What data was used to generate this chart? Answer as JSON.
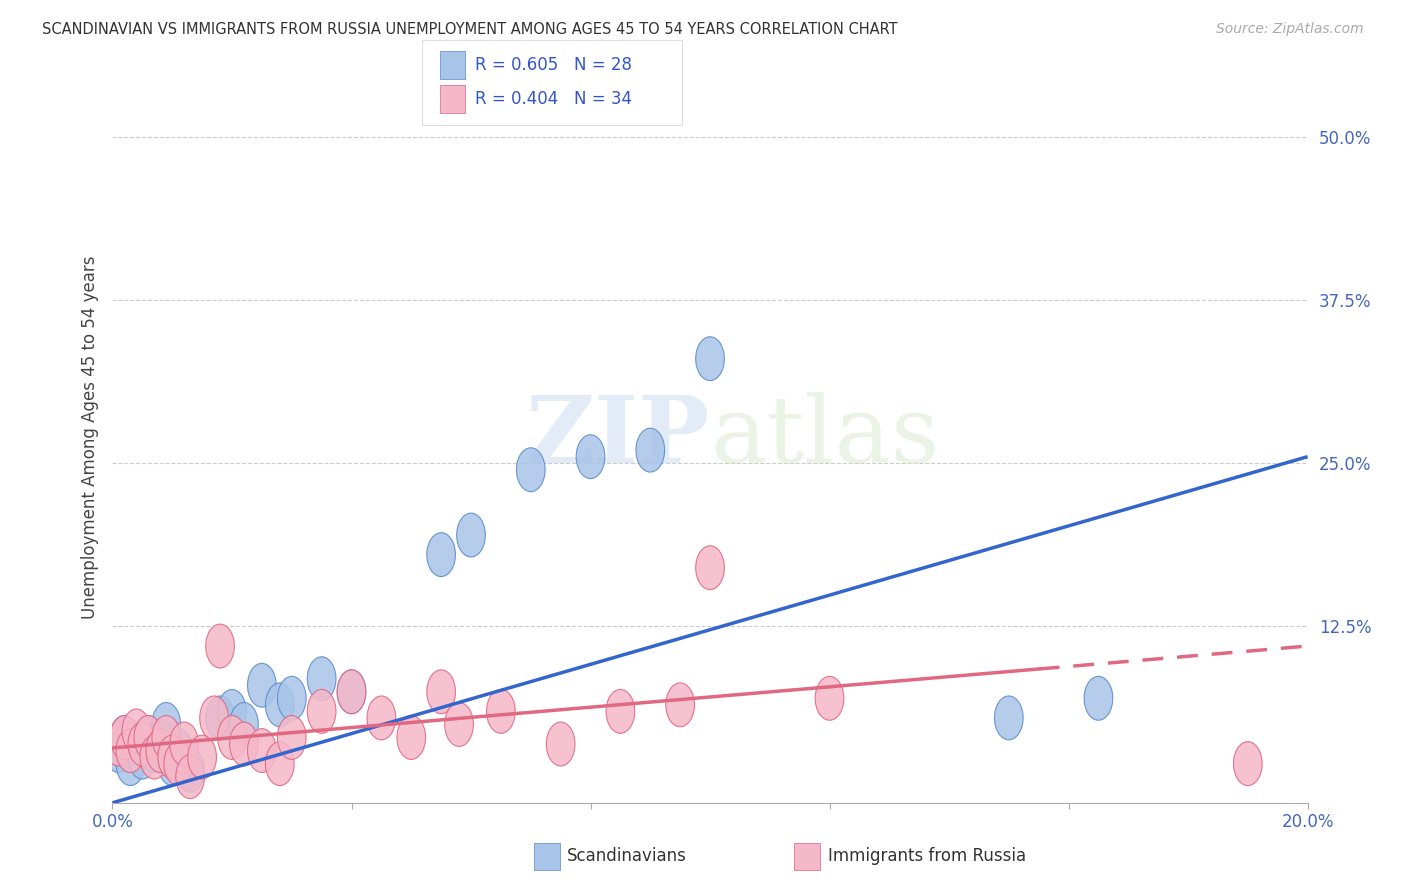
{
  "title": "SCANDINAVIAN VS IMMIGRANTS FROM RUSSIA UNEMPLOYMENT AMONG AGES 45 TO 54 YEARS CORRELATION CHART",
  "source": "Source: ZipAtlas.com",
  "ylabel": "Unemployment Among Ages 45 to 54 years",
  "watermark_zip": "ZIP",
  "watermark_atlas": "atlas",
  "xlim": [
    0.0,
    0.2
  ],
  "ylim": [
    -0.01,
    0.55
  ],
  "yticks": [
    0.0,
    0.125,
    0.25,
    0.375,
    0.5
  ],
  "ytick_labels": [
    "",
    "12.5%",
    "25.0%",
    "37.5%",
    "50.0%"
  ],
  "xticks": [
    0.0,
    0.04,
    0.08,
    0.12,
    0.16,
    0.2
  ],
  "xtick_labels": [
    "0.0%",
    "",
    "",
    "",
    "",
    "20.0%"
  ],
  "scand_color": "#a8c4e8",
  "russia_color": "#f5b8c8",
  "scand_edge_color": "#5588cc",
  "russia_edge_color": "#e06080",
  "scand_line_color": "#3366cc",
  "russia_line_color": "#e06880",
  "scand_x": [
    0.001,
    0.002,
    0.003,
    0.004,
    0.005,
    0.006,
    0.007,
    0.008,
    0.009,
    0.01,
    0.011,
    0.013,
    0.018,
    0.02,
    0.022,
    0.025,
    0.028,
    0.03,
    0.035,
    0.04,
    0.055,
    0.06,
    0.07,
    0.08,
    0.09,
    0.1,
    0.15,
    0.165
  ],
  "scand_y": [
    0.03,
    0.04,
    0.02,
    0.035,
    0.025,
    0.04,
    0.03,
    0.035,
    0.05,
    0.02,
    0.03,
    0.015,
    0.055,
    0.06,
    0.05,
    0.08,
    0.065,
    0.07,
    0.085,
    0.075,
    0.18,
    0.195,
    0.245,
    0.255,
    0.26,
    0.33,
    0.055,
    0.07
  ],
  "russia_x": [
    0.001,
    0.002,
    0.003,
    0.004,
    0.005,
    0.006,
    0.007,
    0.008,
    0.009,
    0.01,
    0.011,
    0.012,
    0.013,
    0.015,
    0.017,
    0.018,
    0.02,
    0.022,
    0.025,
    0.028,
    0.03,
    0.035,
    0.04,
    0.045,
    0.05,
    0.055,
    0.058,
    0.065,
    0.075,
    0.085,
    0.095,
    0.1,
    0.12,
    0.19
  ],
  "russia_y": [
    0.035,
    0.04,
    0.03,
    0.045,
    0.035,
    0.04,
    0.025,
    0.03,
    0.04,
    0.025,
    0.02,
    0.035,
    0.01,
    0.025,
    0.055,
    0.11,
    0.04,
    0.035,
    0.03,
    0.02,
    0.04,
    0.06,
    0.075,
    0.055,
    0.04,
    0.075,
    0.05,
    0.06,
    0.035,
    0.06,
    0.065,
    0.17,
    0.07,
    0.02
  ],
  "scand_line_x": [
    0.0,
    0.2
  ],
  "scand_line_y": [
    -0.01,
    0.255
  ],
  "russia_line_x": [
    0.0,
    0.2
  ],
  "russia_line_y": [
    0.032,
    0.11
  ]
}
